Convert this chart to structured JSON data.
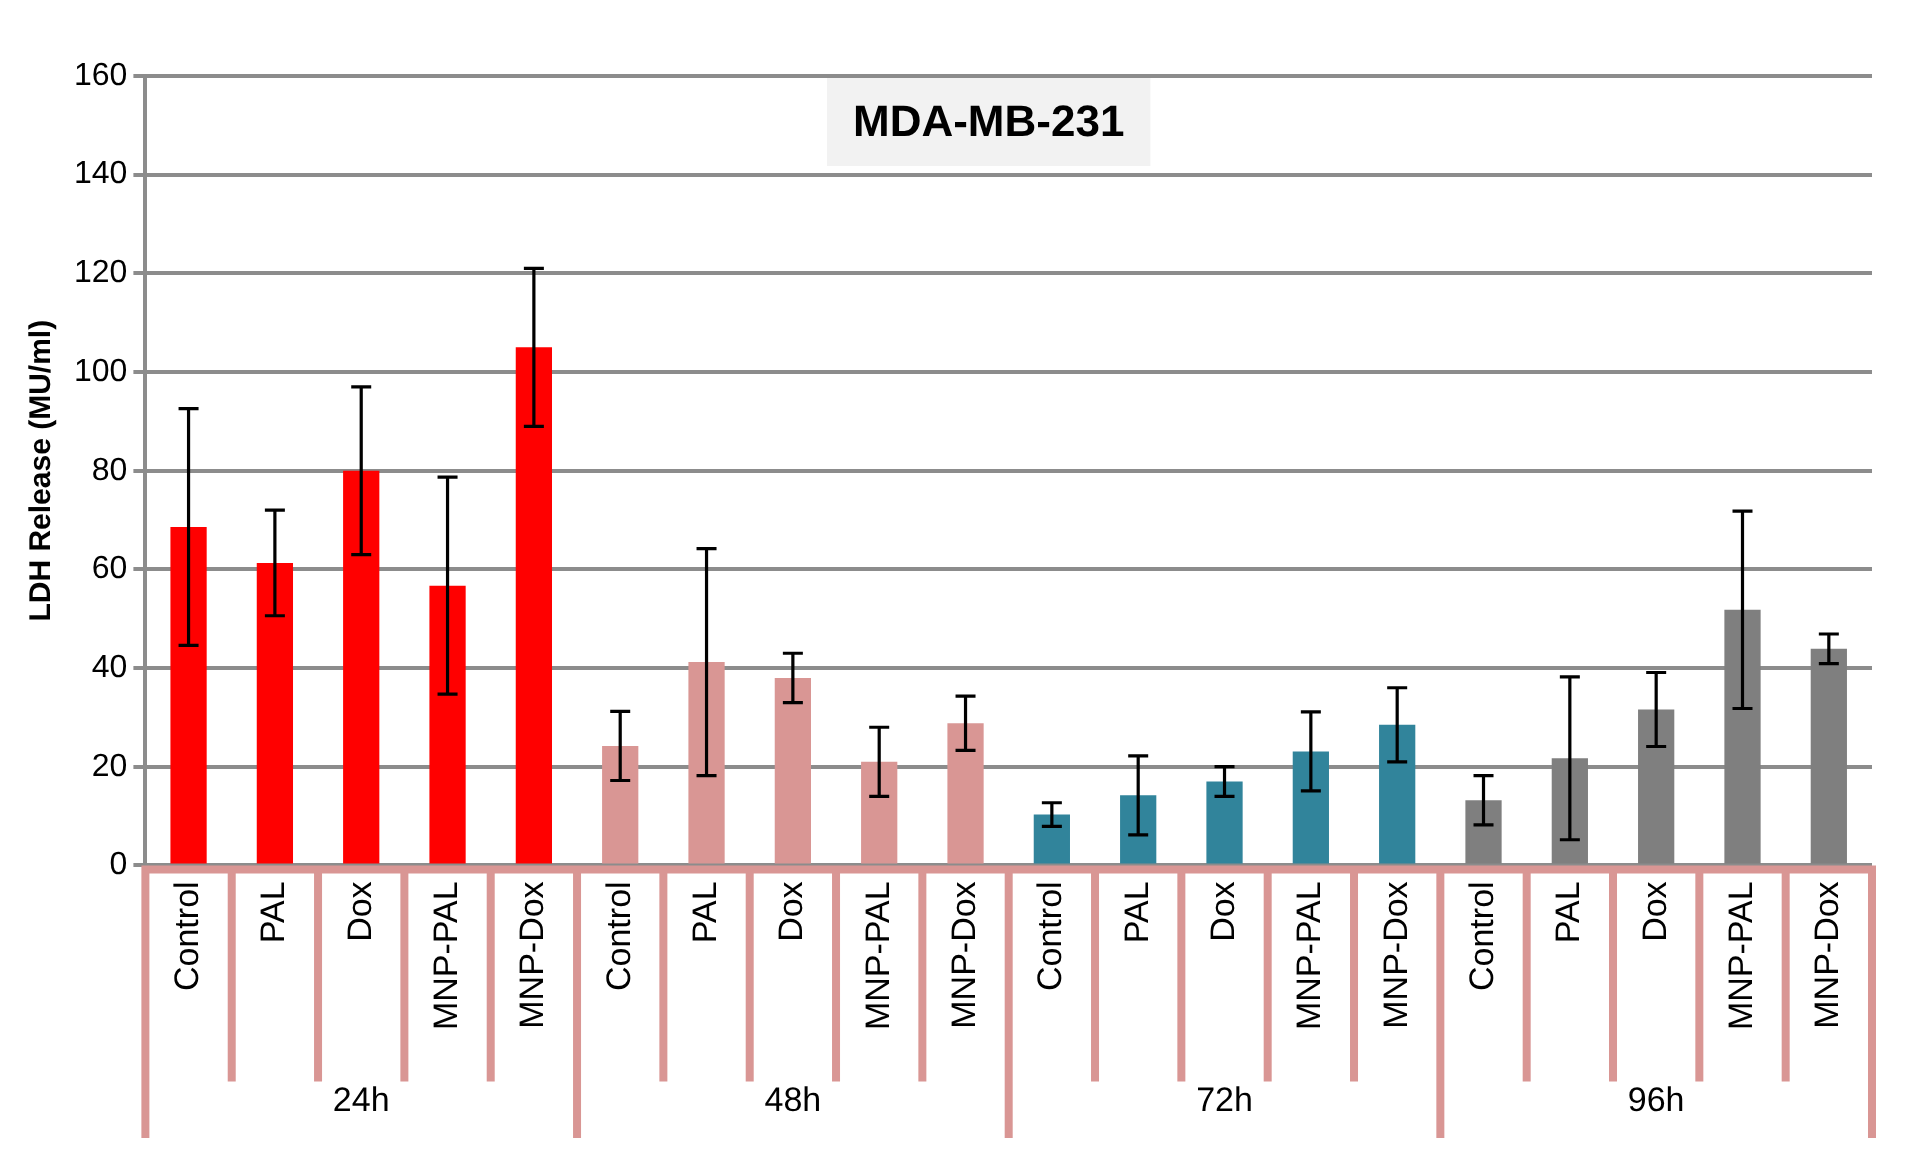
{
  "chart_data": {
    "type": "bar",
    "title": "MDA-MB-231",
    "ylabel": "LDH Release (MU/ml)",
    "categories": [
      "Control",
      "PAL",
      "Dox",
      "MNP-PAL",
      "MNP-Dox",
      "Control",
      "PAL",
      "Dox",
      "MNP-PAL",
      "MNP-Dox",
      "Control",
      "PAL",
      "Dox",
      "MNP-PAL",
      "MNP-Dox",
      "Control",
      "PAL",
      "Dox",
      "MNP-PAL",
      "MNP-Dox"
    ],
    "series": [
      {
        "color": "#ff0000",
        "values": [
          68.6,
          61.3,
          80,
          56.7,
          105,
          null,
          null,
          null,
          null,
          null,
          null,
          null,
          null,
          null,
          null,
          null,
          null,
          null,
          null,
          null
        ],
        "errors": [
          24,
          10.7,
          17,
          22,
          16,
          null,
          null,
          null,
          null,
          null,
          null,
          null,
          null,
          null,
          null,
          null,
          null,
          null,
          null,
          null
        ]
      },
      {
        "color": "#d99694",
        "values": [
          null,
          null,
          null,
          null,
          null,
          24.2,
          41.2,
          38,
          21,
          28.8,
          null,
          null,
          null,
          null,
          null,
          null,
          null,
          null,
          null,
          null
        ],
        "errors": [
          null,
          null,
          null,
          null,
          null,
          7,
          23,
          5,
          7,
          5.5,
          null,
          null,
          null,
          null,
          null,
          null,
          null,
          null,
          null,
          null
        ]
      },
      {
        "color": "#31849b",
        "values": [
          null,
          null,
          null,
          null,
          null,
          null,
          null,
          null,
          null,
          null,
          10.3,
          14.2,
          17,
          23.1,
          28.5,
          null,
          null,
          null,
          null,
          null
        ],
        "errors": [
          null,
          null,
          null,
          null,
          null,
          null,
          null,
          null,
          null,
          null,
          2.4,
          8,
          3,
          8,
          7.5,
          null,
          null,
          null,
          null,
          null
        ]
      },
      {
        "color": "#7f7f7f",
        "values": [
          null,
          null,
          null,
          null,
          null,
          null,
          null,
          null,
          null,
          null,
          null,
          null,
          null,
          null,
          null,
          13.2,
          21.7,
          31.6,
          51.8,
          43.9
        ],
        "errors": [
          null,
          null,
          null,
          null,
          null,
          null,
          null,
          null,
          null,
          null,
          null,
          null,
          null,
          null,
          null,
          5,
          16.5,
          7.5,
          20,
          3
        ]
      }
    ],
    "ylim": [
      0,
      160
    ],
    "yticks": [
      0,
      20,
      40,
      60,
      80,
      100,
      120,
      140,
      160
    ],
    "annotations": [
      "24h",
      "48h",
      "72h",
      "96h"
    ],
    "grid": "y",
    "legend": false
  }
}
